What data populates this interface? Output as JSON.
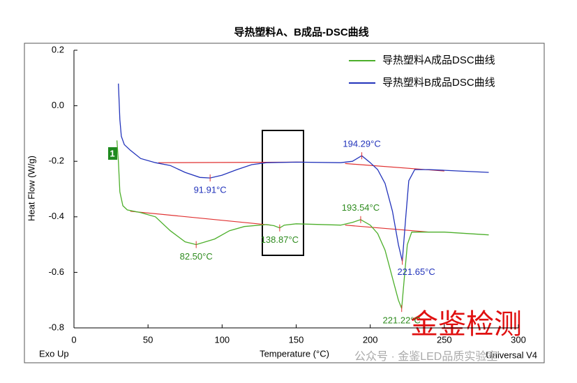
{
  "chart_data": {
    "type": "line",
    "title": "导热塑料A、B成品-DSC曲线",
    "x_label": "Temperature (°C)",
    "y_label": "Heat Flow (W/g)",
    "corner_left": "Exo Up",
    "corner_right": "Universal V4",
    "curve_marker": "1",
    "watermark": "金鉴检测",
    "watermark_sub": "公众号 · 金鉴LED品质实验室",
    "xlim": [
      0,
      300
    ],
    "xticks": [
      0,
      50,
      100,
      150,
      200,
      250,
      300
    ],
    "ylim": [
      -0.8,
      0.2
    ],
    "yticks": [
      -0.8,
      -0.6,
      -0.4,
      -0.2,
      {
        "value": 0,
        "label": "0.0"
      },
      0.2
    ],
    "legend": "top-right",
    "series": [
      {
        "name": "导热塑料A成品DSC曲线",
        "color": "#4caf2a",
        "x": [
          29,
          30,
          31,
          33,
          36,
          45,
          55,
          65,
          75,
          82.5,
          95,
          105,
          115,
          130,
          135,
          138.87,
          142,
          150,
          180,
          188,
          193.54,
          200,
          205,
          210,
          215,
          219,
          221.22,
          223,
          225,
          228,
          250,
          280
        ],
        "values": [
          -0.125,
          -0.2,
          -0.31,
          -0.36,
          -0.375,
          -0.385,
          -0.4,
          -0.45,
          -0.49,
          -0.5,
          -0.48,
          -0.45,
          -0.435,
          -0.428,
          -0.432,
          -0.44,
          -0.43,
          -0.425,
          -0.43,
          -0.42,
          -0.41,
          -0.43,
          -0.46,
          -0.52,
          -0.62,
          -0.7,
          -0.73,
          -0.62,
          -0.5,
          -0.455,
          -0.455,
          -0.465
        ]
      },
      {
        "name": "导热塑料B成品DSC曲线",
        "color": "#2233bb",
        "x": [
          30,
          31,
          32,
          34,
          38,
          45,
          55,
          65,
          75,
          85,
          91.91,
          100,
          110,
          120,
          130,
          150,
          180,
          188,
          194.29,
          200,
          205,
          210,
          215,
          219,
          221.65,
          224,
          226,
          230,
          240,
          260,
          280
        ],
        "values": [
          0.08,
          -0.05,
          -0.11,
          -0.14,
          -0.16,
          -0.19,
          -0.205,
          -0.215,
          -0.24,
          -0.258,
          -0.26,
          -0.25,
          -0.23,
          -0.212,
          -0.205,
          -0.203,
          -0.205,
          -0.2,
          -0.18,
          -0.205,
          -0.23,
          -0.28,
          -0.38,
          -0.5,
          -0.56,
          -0.4,
          -0.27,
          -0.23,
          -0.23,
          -0.235,
          -0.24
        ]
      }
    ],
    "baselines": [
      {
        "color": "#e03030",
        "x": [
          57,
          155
        ],
        "values": [
          -0.205,
          -0.203
        ]
      },
      {
        "color": "#e03030",
        "x": [
          183,
          250
        ],
        "values": [
          -0.208,
          -0.235
        ]
      },
      {
        "color": "#e03030",
        "x": [
          38,
          133
        ],
        "values": [
          -0.38,
          -0.43
        ]
      },
      {
        "color": "#e03030",
        "x": [
          183,
          240
        ],
        "values": [
          -0.43,
          -0.455
        ]
      }
    ],
    "annotations": [
      {
        "text": "91.91°C",
        "x": 91.91,
        "y": -0.26,
        "color": "#2233bb",
        "position": "below"
      },
      {
        "text": "194.29°C",
        "x": 194.29,
        "y": -0.18,
        "color": "#2233bb",
        "position": "above"
      },
      {
        "text": "221.65°C",
        "x": 221.65,
        "y": -0.56,
        "color": "#2233bb",
        "position": "right"
      },
      {
        "text": "82.50°C",
        "x": 82.5,
        "y": -0.5,
        "color": "#2e8b1e",
        "position": "below"
      },
      {
        "text": "138.87°C",
        "x": 138.87,
        "y": -0.44,
        "color": "#2e8b1e",
        "position": "below"
      },
      {
        "text": "193.54°C",
        "x": 193.54,
        "y": -0.41,
        "color": "#2e8b1e",
        "position": "above"
      },
      {
        "text": "221.22°C",
        "x": 221.22,
        "y": -0.73,
        "color": "#2e8b1e",
        "position": "below"
      }
    ]
  }
}
